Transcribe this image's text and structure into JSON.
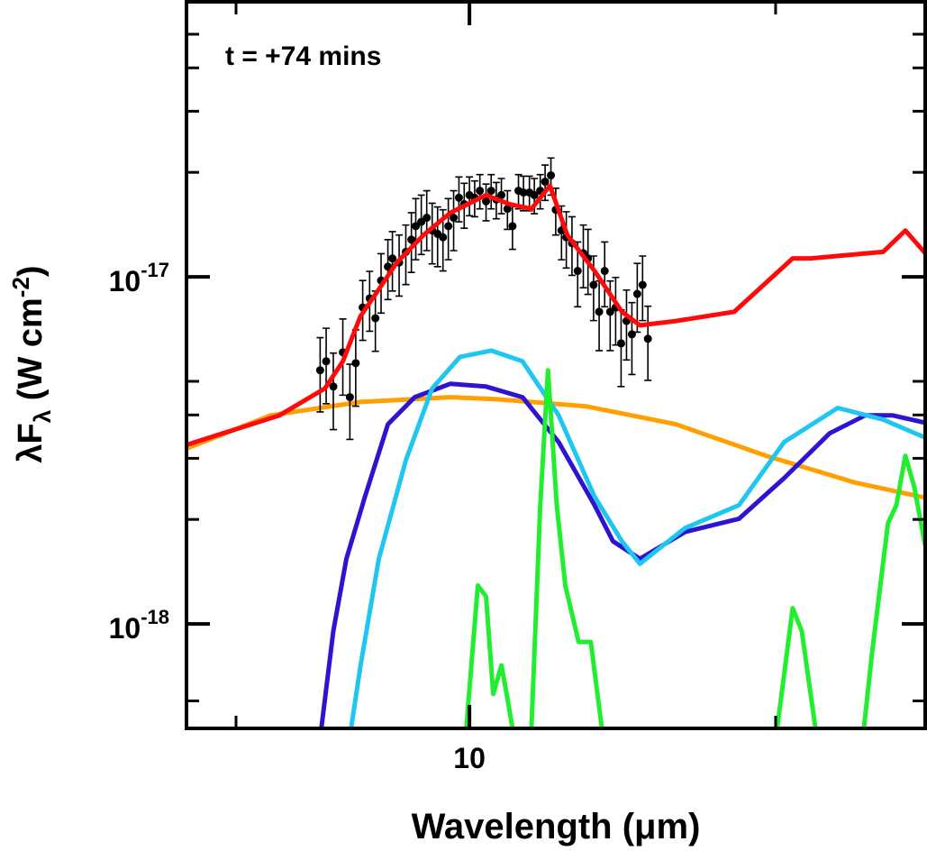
{
  "chart_data": {
    "type": "line",
    "xscale": "log",
    "yscale": "log",
    "annotation": "t = +74 mins",
    "xlabel": "Wavelength (μm)",
    "ylabel": [
      "λF",
      "λ",
      " (W cm",
      "-2",
      ")"
    ],
    "xlim": [
      7.63,
      15.46
    ],
    "ylim": [
      5e-19,
      6.2e-17
    ],
    "xticks": [
      10
    ],
    "xminorticks": [
      8,
      13.4
    ],
    "yticks": [
      {
        "value": 1e-17,
        "label": "10",
        "exponent": "-17"
      },
      {
        "value": 1e-18,
        "label": "10",
        "exponent": "-18"
      }
    ],
    "yminorticks": [
      6e-19,
      2e-18,
      3e-18,
      4e-18,
      5e-18,
      2e-17,
      3e-17,
      4e-17,
      5e-17
    ],
    "series": [
      {
        "color": "#ffa000",
        "x": [
          7.63,
          8.27,
          9.01,
          9.82,
          10.25,
          11.17,
          12.18,
          13.28,
          14.47,
          15.46
        ],
        "values": [
          3.2e-18,
          3.99e-18,
          4.36e-18,
          4.5e-18,
          4.44e-18,
          4.24e-18,
          3.76e-18,
          3.05e-18,
          2.55e-18,
          2.31e-18
        ]
      },
      {
        "color": "#2c14d0",
        "x": [
          8.68,
          8.78,
          8.89,
          9.05,
          9.25,
          9.49,
          9.82,
          10.16,
          10.52,
          10.89,
          11.27,
          11.47,
          11.77,
          12.29,
          12.94,
          13.51,
          14.11,
          14.6,
          14.98,
          15.46
        ],
        "values": [
          5e-19,
          9.54e-19,
          1.54e-18,
          2.33e-18,
          3.76e-18,
          4.5e-18,
          4.92e-18,
          4.83e-18,
          4.5e-18,
          3.34e-18,
          2.2e-18,
          1.73e-18,
          1.54e-18,
          1.84e-18,
          2.01e-18,
          2.63e-18,
          3.54e-18,
          3.99e-18,
          3.99e-18,
          3.8e-18
        ]
      },
      {
        "color": "#1ec6f0",
        "x": [
          8.93,
          9.01,
          9.17,
          9.41,
          9.65,
          9.91,
          10.21,
          10.52,
          10.89,
          11.27,
          11.57,
          11.77,
          12.29,
          12.94,
          13.51,
          14.22,
          14.85,
          15.46
        ],
        "values": [
          5e-19,
          7.52e-19,
          1.54e-18,
          2.96e-18,
          4.77e-18,
          5.88e-18,
          6.13e-18,
          5.71e-18,
          3.99e-18,
          2.33e-18,
          1.73e-18,
          1.49e-18,
          1.89e-18,
          2.2e-18,
          3.34e-18,
          4.19e-18,
          3.88e-18,
          3.44e-18
        ]
      },
      {
        "color": "#22ee30",
        "x": [
          9.97,
          10.08,
          10.16,
          10.23,
          10.31,
          10.37,
          10.42,
          10.5,
          10.61,
          10.7,
          10.78,
          10.87,
          10.96,
          11.1,
          11.23,
          11.35,
          12.5,
          13.42,
          13.62,
          13.74,
          13.92,
          14.2,
          14.58,
          14.7,
          14.92,
          15.04,
          15.17,
          15.3,
          15.46
        ],
        "values": [
          5e-19,
          1.29e-18,
          1.2e-18,
          6.28e-19,
          7.6e-19,
          6.1e-19,
          5e-19,
          null,
          5e-19,
          2.2e-18,
          5.38e-18,
          2.2e-18,
          1.29e-18,
          8.87e-19,
          8.87e-19,
          5e-19,
          null,
          5e-19,
          1.11e-18,
          9.54e-19,
          5e-19,
          null,
          5e-19,
          8.46e-19,
          1.95e-18,
          2.2e-18,
          3.05e-18,
          2.48e-18,
          1.68e-18
        ]
      },
      {
        "color": "#ff0a0a",
        "x": [
          7.63,
          8.34,
          8.71,
          8.86,
          9.01,
          9.17,
          9.33,
          9.57,
          9.82,
          10.16,
          10.39,
          10.61,
          10.8,
          10.98,
          11.27,
          11.57,
          11.77,
          12.18,
          12.88,
          13.62,
          13.86,
          14.85,
          15.17,
          15.46
        ],
        "values": [
          3.28e-18,
          3.99e-18,
          4.77e-18,
          5.71e-18,
          7.69e-18,
          9.2e-18,
          1.1e-17,
          1.32e-17,
          1.53e-17,
          1.72e-17,
          1.62e-17,
          1.57e-17,
          1.83e-17,
          1.32e-17,
          1.04e-17,
          7.93e-18,
          7.25e-18,
          7.46e-18,
          7.93e-18,
          1.13e-17,
          1.13e-17,
          1.18e-17,
          1.36e-17,
          1.17e-17
        ]
      }
    ],
    "points": {
      "color": "#000000",
      "x": [
        8.67,
        8.72,
        8.78,
        8.86,
        8.92,
        8.97,
        9.03,
        9.09,
        9.14,
        9.19,
        9.25,
        9.29,
        9.35,
        9.41,
        9.46,
        9.5,
        9.55,
        9.6,
        9.65,
        9.7,
        9.75,
        9.8,
        9.85,
        9.9,
        9.95,
        10.0,
        10.05,
        10.1,
        10.16,
        10.21,
        10.26,
        10.31,
        10.37,
        10.42,
        10.48,
        10.53,
        10.59,
        10.64,
        10.7,
        10.75,
        10.81,
        10.86,
        10.92,
        10.97,
        11.03,
        11.09,
        11.15,
        11.2,
        11.26,
        11.32,
        11.38,
        11.44,
        11.5,
        11.56,
        11.62,
        11.68,
        11.74,
        11.8,
        11.86
      ],
      "values": [
        5.38e-18,
        5.71e-18,
        4.83e-18,
        6.06e-18,
        4.5e-18,
        5.64e-18,
        8.16e-18,
        8.67e-18,
        7.6e-18,
        9.76e-18,
        1.07e-17,
        1.13e-17,
        1.1e-17,
        1.18e-17,
        1.28e-17,
        1.4e-17,
        1.44e-17,
        1.48e-17,
        1.36e-17,
        1.33e-17,
        1.3e-17,
        1.4e-17,
        1.48e-17,
        1.69e-17,
        1.62e-17,
        1.72e-17,
        1.69e-17,
        1.77e-17,
        1.65e-17,
        1.77e-17,
        1.67e-17,
        1.72e-17,
        1.57e-17,
        1.4e-17,
        1.77e-17,
        1.75e-17,
        1.75e-17,
        1.72e-17,
        1.77e-17,
        1.88e-17,
        1.96e-17,
        1.56e-17,
        1.36e-17,
        1.3e-17,
        1.25e-17,
        1.04e-17,
        1.17e-17,
        1.13e-17,
        9.48e-18,
        7.93e-18,
        1.04e-17,
        7.93e-18,
        8.16e-18,
        6.43e-18,
        7.46e-18,
        6.83e-18,
        8.93e-18,
        9.48e-18,
        6.63e-18
      ],
      "errors": [
        1.3e-18,
        1.4e-18,
        1.2e-18,
        1.5e-18,
        1.1e-18,
        1.4e-18,
        1.6e-18,
        1.7e-18,
        1.5e-18,
        1.9e-18,
        2.1e-18,
        2.2e-18,
        2.2e-18,
        2.3e-18,
        2.5e-18,
        2.8e-18,
        2.8e-18,
        2.9e-18,
        2.7e-18,
        2.6e-18,
        2.6e-18,
        2.8e-18,
        2.9e-18,
        2.5e-18,
        2.4e-18,
        2.2e-18,
        2e-18,
        2e-18,
        2e-18,
        2e-18,
        2e-18,
        2e-18,
        2e-18,
        2e-18,
        2e-18,
        2e-18,
        2e-18,
        2e-18,
        2e-18,
        2.2e-18,
        2.4e-18,
        2.4e-18,
        2.4e-18,
        2.4e-18,
        2.4e-18,
        2.2e-18,
        2.4e-18,
        2.4e-18,
        2e-18,
        1.8e-18,
        2.2e-18,
        1.8e-18,
        1.8e-18,
        1.6e-18,
        1.7e-18,
        1.6e-18,
        2e-18,
        2e-18,
        1.6e-18
      ]
    }
  }
}
